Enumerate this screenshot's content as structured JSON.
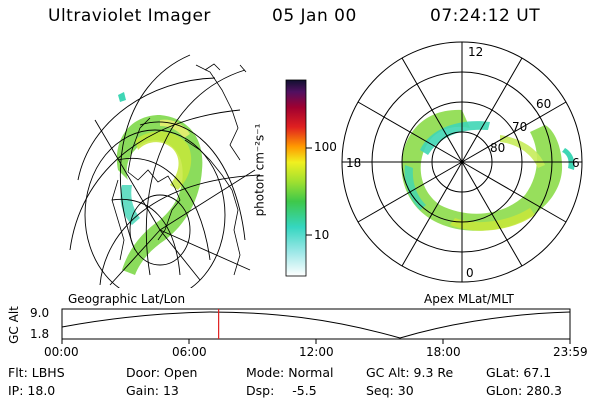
{
  "header": {
    "title": "Ultraviolet Imager",
    "date": "05 Jan 00",
    "time": "07:24:12 UT"
  },
  "colorbar": {
    "label": "photon cm⁻²s⁻¹",
    "ticks": [
      {
        "label": "100",
        "value": 100
      },
      {
        "label": "10",
        "value": 10
      }
    ]
  },
  "left_panel": {
    "caption": "Geographic Lat/Lon"
  },
  "right_panel": {
    "caption": "Apex MLat/MLT",
    "mlt_labels": [
      "12",
      "18",
      "6",
      "0"
    ],
    "lat_labels": [
      "60",
      "70",
      "80"
    ]
  },
  "altitude_plot": {
    "ylabel": "GC Alt",
    "yticks": [
      "9.0",
      "1.8"
    ],
    "xticks": [
      "00:00",
      "06:00",
      "12:00",
      "18:00",
      "23:59"
    ],
    "current_time_hours": 7.4
  },
  "info": {
    "filter_label": "Flt:",
    "filter_value": "LBHS",
    "ip_label": "IP:",
    "ip_value": "18.0",
    "door_label": "Door:",
    "door_value": "Open",
    "gain_label": "Gain:",
    "gain_value": "13",
    "mode_label": "Mode:",
    "mode_value": "Normal",
    "dsp_label": "Dsp:",
    "dsp_value": "-5.5",
    "gcalt_label": "GC Alt:",
    "gcalt_value": "9.3 Re",
    "seq_label": "Seq:",
    "seq_value": "30",
    "glat_label": "GLat:",
    "glat_value": "67.1",
    "glon_label": "GLon:",
    "glon_value": "280.3"
  }
}
